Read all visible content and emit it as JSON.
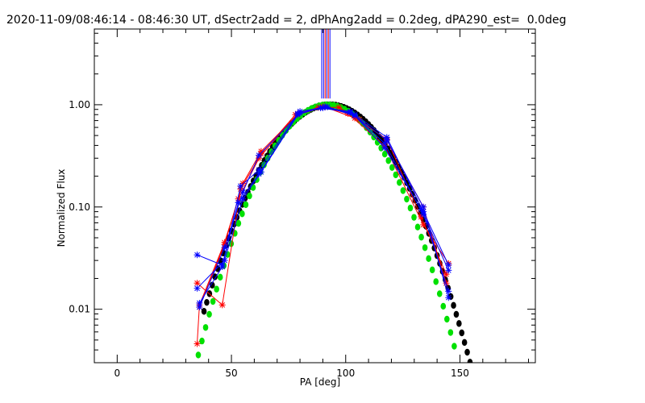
{
  "chart_data": {
    "type": "scatter",
    "title": "2020-11-09/08:46:14 - 08:46:30 UT, dSectr2add = 2, dPhAng2add = 0.2deg, dPA290_est=  0.0deg",
    "xlabel": "PA [deg]",
    "ylabel": "Normalized Flux",
    "xlim": [
      -10,
      183
    ],
    "ylim": [
      0.003,
      5.5
    ],
    "yscale": "log",
    "xticks": [
      0,
      50,
      100,
      150
    ],
    "xtick_labels": [
      "0",
      "50",
      "100",
      "150"
    ],
    "yticks": [
      0.01,
      0.1,
      1.0
    ],
    "ytick_labels": [
      "0.01",
      "0.10",
      "1.00"
    ],
    "vertical_lines": [
      {
        "x": 89.5,
        "ymin": 1.15,
        "color": "#0000ff"
      },
      {
        "x": 90.3,
        "ymin": 1.15,
        "color": "#0000ff"
      },
      {
        "x": 91.0,
        "ymin": 1.15,
        "color": "#ff0000"
      },
      {
        "x": 91.7,
        "ymin": 1.15,
        "color": "#0000ff"
      },
      {
        "x": 92.4,
        "ymin": 1.15,
        "color": "#ff0000"
      },
      {
        "x": 93.1,
        "ymin": 1.15,
        "color": "#0000ff"
      }
    ],
    "series": [
      {
        "marker": "dot",
        "color": "#000000",
        "center": 93,
        "width": 25.5,
        "x_from": 38,
        "x_to": 159,
        "step": 1.2
      },
      {
        "marker": "dot",
        "color": "#00e000",
        "center": 92,
        "width": 23.8,
        "x_from": 35.5,
        "x_to": 149,
        "step": 1.6
      },
      {
        "marker": "cross-line",
        "color": "#ff0000",
        "x": [
          35,
          36,
          47,
          53,
          63,
          78,
          88,
          97,
          106,
          118,
          134,
          144
        ],
        "y": [
          0.0046,
          0.011,
          0.045,
          0.12,
          0.33,
          0.8,
          0.94,
          0.94,
          0.72,
          0.45,
          0.1,
          0.018
        ]
      },
      {
        "marker": "cross-line",
        "color": "#ff0000",
        "x": [
          35,
          46,
          54,
          62,
          79,
          90,
          101,
          117,
          134,
          145
        ],
        "y": [
          0.018,
          0.011,
          0.15,
          0.3,
          0.82,
          0.96,
          0.82,
          0.4,
          0.067,
          0.028
        ]
      },
      {
        "marker": "cross-line",
        "color": "#ff0000",
        "x": [
          36,
          47,
          55,
          63,
          79,
          91,
          104,
          118,
          133,
          144
        ],
        "y": [
          0.0105,
          0.043,
          0.17,
          0.35,
          0.8,
          0.95,
          0.74,
          0.46,
          0.08,
          0.022
        ]
      },
      {
        "marker": "cross-line",
        "color": "#0000ff",
        "x": [
          35,
          46,
          53,
          62,
          79,
          89,
          102,
          118,
          134,
          145
        ],
        "y": [
          0.034,
          0.027,
          0.11,
          0.21,
          0.8,
          0.93,
          0.84,
          0.45,
          0.1,
          0.013
        ]
      },
      {
        "marker": "cross-line",
        "color": "#0000ff",
        "x": [
          35,
          47,
          55,
          63,
          80,
          92,
          104,
          118,
          134,
          145
        ],
        "y": [
          0.016,
          0.03,
          0.12,
          0.22,
          0.86,
          0.95,
          0.8,
          0.48,
          0.09,
          0.027
        ]
      },
      {
        "marker": "cross-line",
        "color": "#0000ff",
        "x": [
          36,
          46,
          54,
          62,
          79,
          90,
          102,
          117,
          134,
          145
        ],
        "y": [
          0.0115,
          0.026,
          0.16,
          0.23,
          0.82,
          0.93,
          0.86,
          0.42,
          0.085,
          0.015
        ]
      },
      {
        "marker": "cross-line",
        "color": "#0000ff",
        "x": [
          36,
          47,
          55,
          62,
          80,
          91,
          104,
          117,
          133,
          145
        ],
        "y": [
          0.0105,
          0.04,
          0.14,
          0.32,
          0.83,
          0.96,
          0.78,
          0.38,
          0.095,
          0.024
        ]
      }
    ]
  }
}
